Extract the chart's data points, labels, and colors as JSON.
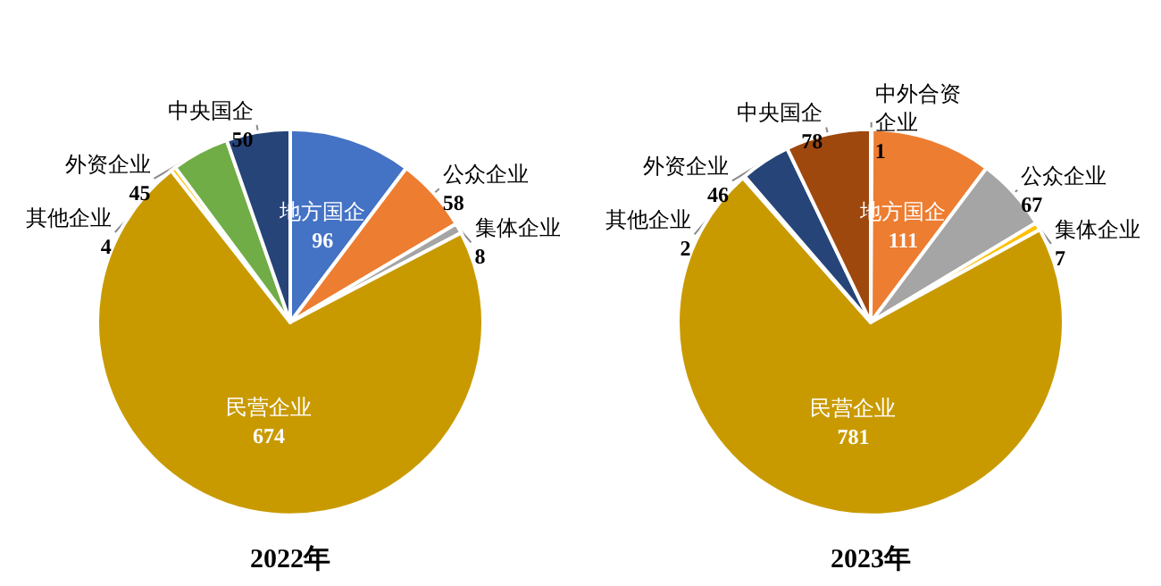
{
  "chart_data": [
    {
      "type": "pie",
      "title": "2022年",
      "categories": [
        "地方国企",
        "公众企业",
        "集体企业",
        "民营企业",
        "其他企业",
        "外资企业",
        "中央国企"
      ],
      "values": [
        96,
        58,
        8,
        674,
        4,
        45,
        50
      ],
      "colors": [
        "#4472c4",
        "#ed7d31",
        "#a5a5a5",
        "#c99a00",
        "#ffc000",
        "#70ad47",
        "#264478"
      ],
      "data_labels": true,
      "legend": false
    },
    {
      "type": "pie",
      "title": "2023年",
      "categories": [
        "中外合资企业",
        "地方国企",
        "公众企业",
        "集体企业",
        "民营企业",
        "其他企业",
        "外资企业",
        "中央国企"
      ],
      "values": [
        1,
        111,
        67,
        7,
        781,
        2,
        46,
        78
      ],
      "colors": [
        "#5b9bd5",
        "#ed7d31",
        "#a5a5a5",
        "#ffc000",
        "#c99a00",
        "#7f7f7f",
        "#264478",
        "#9e480e"
      ],
      "data_labels": true,
      "legend": false
    }
  ]
}
